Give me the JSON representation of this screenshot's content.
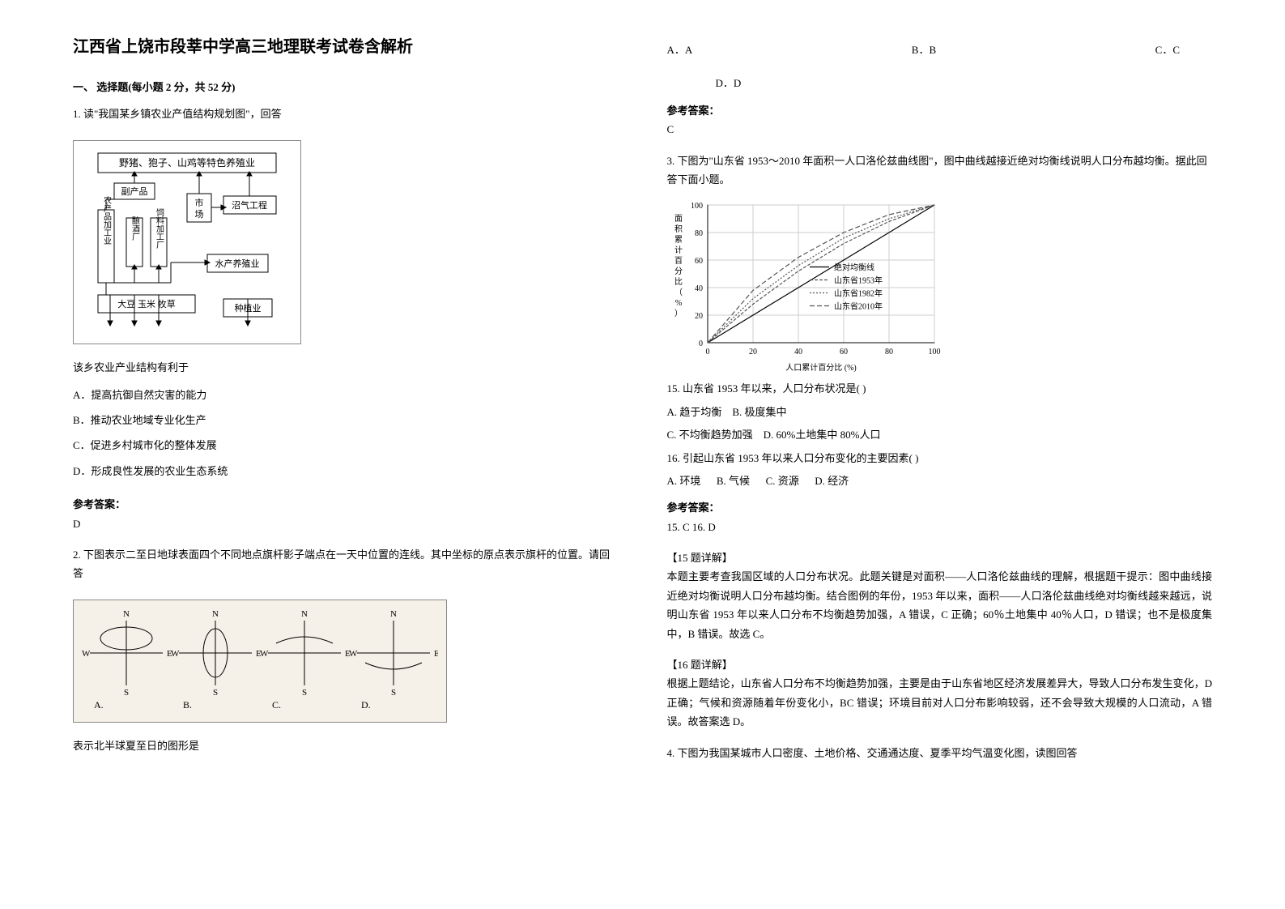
{
  "title": "江西省上饶市段莘中学高三地理联考试卷含解析",
  "section1_header": "一、 选择题(每小题 2 分，共 52 分)",
  "q1": {
    "text": "1. 读\"我国某乡镇农业产值结构规划图\"，回答",
    "figure": {
      "boxes": {
        "top": "野猪、狍子、山鸡等特色养殖业",
        "byproduct": "副产品",
        "market": "市场",
        "biogas": "沼气工程",
        "processing": "农产品加工业",
        "wine": "酿酒厂",
        "feed": "饲料加工厂",
        "aqua": "水产养殖业",
        "crops": "大豆 玉米 牧草",
        "planting": "种植业"
      }
    },
    "stem2": "该乡农业产业结构有利于",
    "options": {
      "A": "A．提高抗御自然灾害的能力",
      "B": "B．推动农业地域专业化生产",
      "C": "C．促进乡村城市化的整体发展",
      "D": "D．形成良性发展的农业生态系统"
    },
    "answer_label": "参考答案：",
    "answer": "D"
  },
  "q2": {
    "text": "2. 下图表示二至日地球表面四个不同地点旗杆影子端点在一天中位置的连线。其中坐标的原点表示旗杆的位置。请回答",
    "figure_labels": {
      "N": "N",
      "S": "S",
      "E": "E",
      "W": "W",
      "A": "A.",
      "B": "B.",
      "C": "C.",
      "D": "D."
    },
    "stem2": "表示北半球夏至日的图形是",
    "options": {
      "A": "A．A",
      "B": "B．B",
      "C": "C．C",
      "D": "D．D"
    },
    "answer_label": "参考答案：",
    "answer": "C"
  },
  "q3": {
    "text": "3. 下图为\"山东省 1953～2010 年面积一人口洛伦兹曲线图\"，图中曲线越接近绝对均衡线说明人口分布越均衡。据此回答下面小题。",
    "chart": {
      "type": "line",
      "xlabel": "人口累计百分比 (%)",
      "ylabel": "面积累计百分比（%）",
      "xlim": [
        0,
        100
      ],
      "ylim": [
        0,
        100
      ],
      "xtick_step": 20,
      "ytick_step": 20,
      "grid_color": "#cccccc",
      "background_color": "#ffffff",
      "axis_color": "#000000",
      "legend_items": [
        {
          "label": "绝对均衡线",
          "color": "#000000",
          "dash": "none"
        },
        {
          "label": "山东省1953年",
          "color": "#555555",
          "dash": "4,2"
        },
        {
          "label": "山东省1982年",
          "color": "#555555",
          "dash": "2,2"
        },
        {
          "label": "山东省2010年",
          "color": "#555555",
          "dash": "6,3"
        }
      ],
      "series": {
        "absolute": [
          [
            0,
            0
          ],
          [
            100,
            100
          ]
        ],
        "y1953": [
          [
            0,
            0
          ],
          [
            20,
            28
          ],
          [
            40,
            52
          ],
          [
            60,
            72
          ],
          [
            80,
            88
          ],
          [
            100,
            100
          ]
        ],
        "y1982": [
          [
            0,
            0
          ],
          [
            20,
            32
          ],
          [
            40,
            56
          ],
          [
            60,
            76
          ],
          [
            80,
            90
          ],
          [
            100,
            100
          ]
        ],
        "y2010": [
          [
            0,
            0
          ],
          [
            20,
            38
          ],
          [
            40,
            62
          ],
          [
            60,
            80
          ],
          [
            80,
            93
          ],
          [
            100,
            100
          ]
        ]
      },
      "label_fontsize": 10
    },
    "q15": {
      "text": "15.  山东省 1953 年以来，人口分布状况是(    )",
      "options": {
        "A": "A.  趋于均衡",
        "B": "B.  极度集中",
        "C": "C.  不均衡趋势加强",
        "D": "D.  60%土地集中 80%人口"
      }
    },
    "q16": {
      "text": "16.  引起山东省 1953 年以来人口分布变化的主要因素(    )",
      "options": {
        "A": "A.  环境",
        "B": "B.  气候",
        "C": "C.  资源",
        "D": "D.  经济"
      }
    },
    "answer_label": "参考答案：",
    "answer": "15.  C      16.  D",
    "exp15_label": "【15 题详解】",
    "exp15": "本题主要考查我国区域的人口分布状况。此题关键是对面积——人口洛伦兹曲线的理解，根据题干提示：图中曲线接近绝对均衡说明人口分布越均衡。结合图例的年份，1953 年以来，面积——人口洛伦兹曲线绝对均衡线越来越远，说明山东省 1953 年以来人口分布不均衡趋势加强，A 错误，C 正确；60％土地集中 40％人口，D 错误；也不是极度集中，B 错误。故选 C。",
    "exp16_label": "【16 题详解】",
    "exp16": "根据上题结论，山东省人口分布不均衡趋势加强，主要是由于山东省地区经济发展差异大，导致人口分布发生变化，D 正确；气候和资源随着年份变化小，BC 错误；环境目前对人口分布影响较弱，还不会导致大规模的人口流动，A 错误。故答案选 D。"
  },
  "q4": {
    "text": "4. 下图为我国某城市人口密度、土地价格、交通通达度、夏季平均气温变化图，读图回答"
  }
}
